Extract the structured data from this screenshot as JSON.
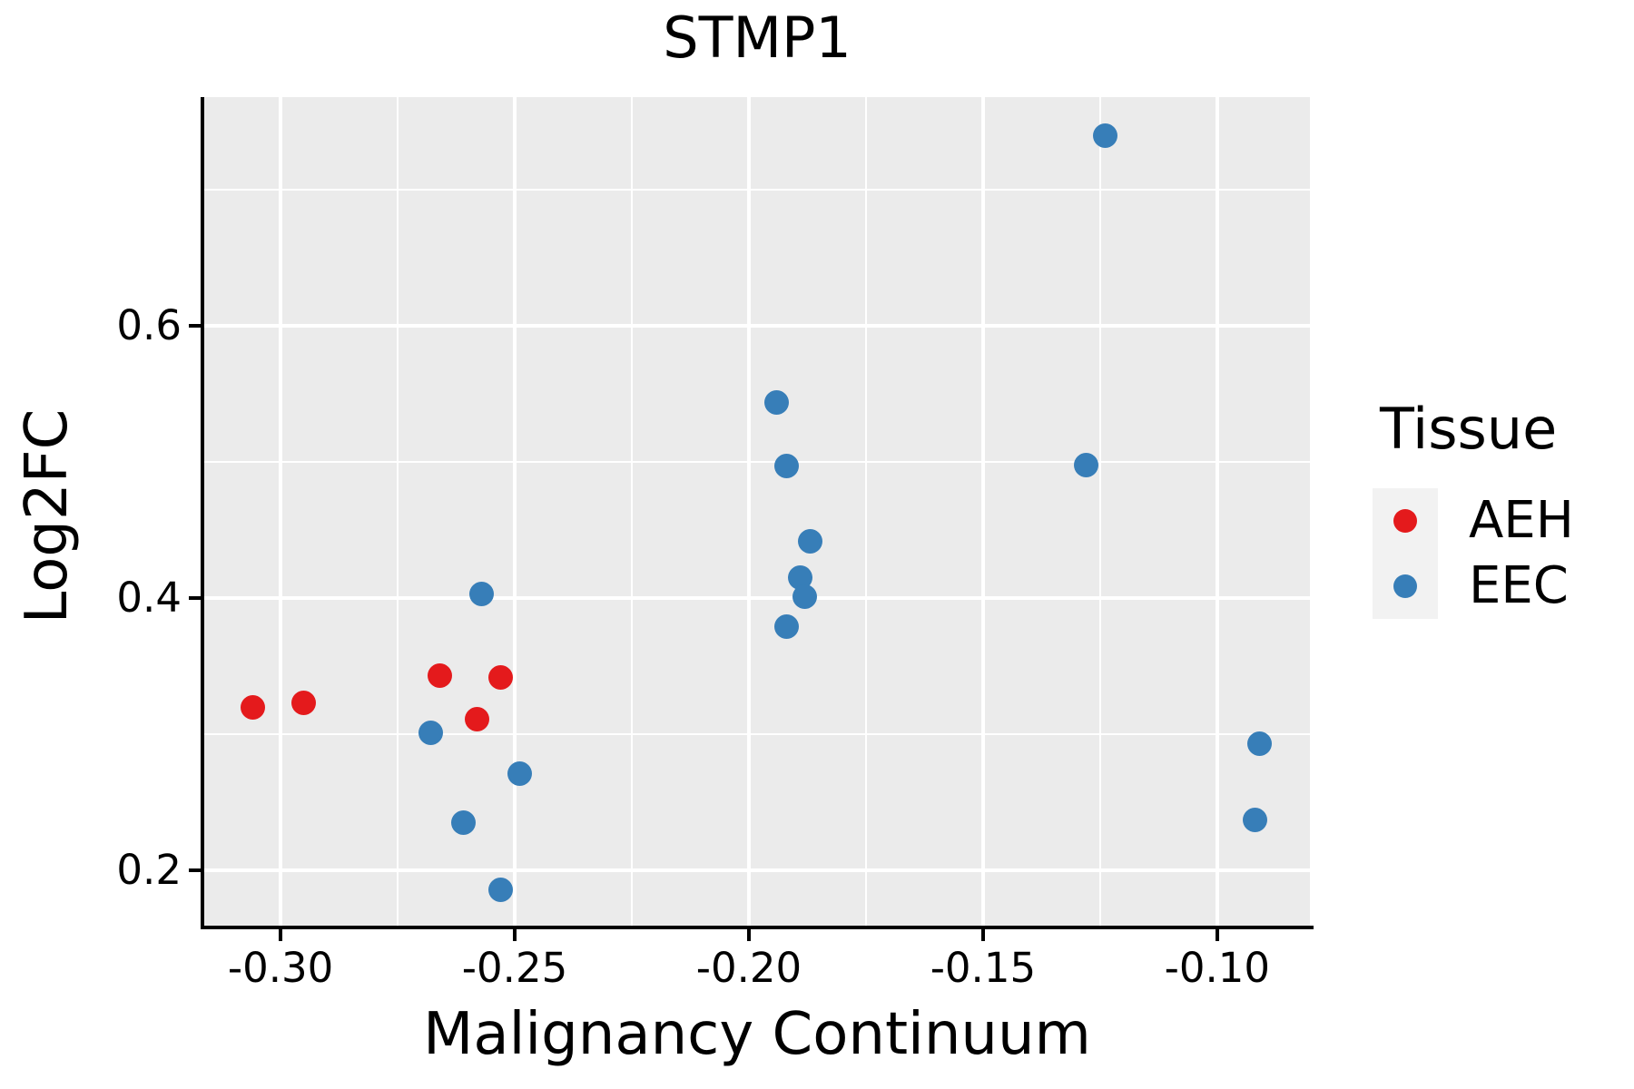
{
  "title": "STMP1",
  "axes": {
    "x": {
      "label": "Malignancy Continuum",
      "ticks": [
        {
          "value": -0.3,
          "label": "-0.30"
        },
        {
          "value": -0.25,
          "label": "-0.25"
        },
        {
          "value": -0.2,
          "label": "-0.20"
        },
        {
          "value": -0.15,
          "label": "-0.15"
        },
        {
          "value": -0.1,
          "label": "-0.10"
        }
      ]
    },
    "y": {
      "label": "Log2FC",
      "ticks": [
        {
          "value": 0.2,
          "label": "0.2"
        },
        {
          "value": 0.4,
          "label": "0.4"
        },
        {
          "value": 0.6,
          "label": "0.6"
        }
      ]
    }
  },
  "legend": {
    "title": "Tissue",
    "items": [
      {
        "label": "AEH",
        "color": "#E41A1C"
      },
      {
        "label": "EEC",
        "color": "#377EB8"
      }
    ]
  },
  "colors": {
    "panel_background": "#EBEBEB",
    "gridline": "#FFFFFF",
    "axis_line": "#000000",
    "text": "#000000",
    "legend_key_background": "#F2F2F2",
    "aeh_red": "#E41A1C",
    "eec_blue": "#377EB8"
  },
  "chart_data": {
    "type": "scatter",
    "title": "STMP1",
    "xlabel": "Malignancy Continuum",
    "ylabel": "Log2FC",
    "xlim": [
      -0.3163,
      -0.0802
    ],
    "ylim": [
      0.158,
      0.768
    ],
    "x_major_gridlines": [
      -0.3,
      -0.25,
      -0.2,
      -0.15,
      -0.1
    ],
    "x_minor_gridlines": [
      -0.275,
      -0.225,
      -0.175,
      -0.125
    ],
    "y_major_gridlines": [
      0.2,
      0.4,
      0.6
    ],
    "y_minor_gridlines": [
      0.3,
      0.5,
      0.7
    ],
    "grid": true,
    "legend_position": "right",
    "series": [
      {
        "name": "AEH",
        "color": "#E41A1C",
        "points": [
          [
            -0.306,
            0.32
          ],
          [
            -0.295,
            0.323
          ],
          [
            -0.266,
            0.343
          ],
          [
            -0.253,
            0.342
          ],
          [
            -0.258,
            0.311
          ]
        ]
      },
      {
        "name": "EEC",
        "color": "#377EB8",
        "points": [
          [
            -0.268,
            0.301
          ],
          [
            -0.257,
            0.403
          ],
          [
            -0.249,
            0.271
          ],
          [
            -0.261,
            0.235
          ],
          [
            -0.253,
            0.186
          ],
          [
            -0.194,
            0.544
          ],
          [
            -0.192,
            0.497
          ],
          [
            -0.187,
            0.442
          ],
          [
            -0.189,
            0.415
          ],
          [
            -0.188,
            0.401
          ],
          [
            -0.192,
            0.379
          ],
          [
            -0.124,
            0.74
          ],
          [
            -0.128,
            0.498
          ],
          [
            -0.091,
            0.293
          ],
          [
            -0.092,
            0.237
          ]
        ]
      }
    ]
  }
}
